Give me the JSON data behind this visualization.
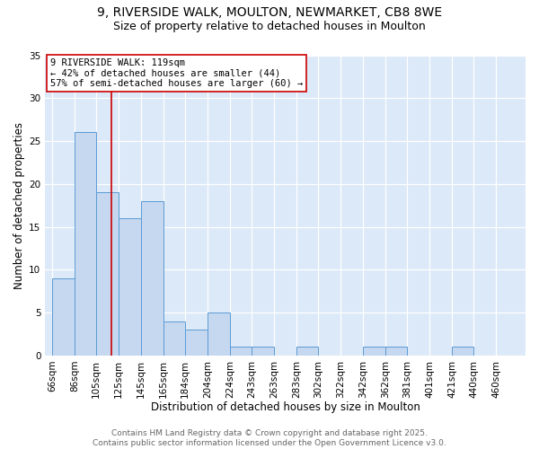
{
  "title_line1": "9, RIVERSIDE WALK, MOULTON, NEWMARKET, CB8 8WE",
  "title_line2": "Size of property relative to detached houses in Moulton",
  "xlabel": "Distribution of detached houses by size in Moulton",
  "ylabel": "Number of detached properties",
  "bins": [
    66,
    86,
    105,
    125,
    145,
    165,
    184,
    204,
    224,
    243,
    263,
    283,
    302,
    322,
    342,
    362,
    381,
    401,
    421,
    440,
    460
  ],
  "bin_labels": [
    "66sqm",
    "86sqm",
    "105sqm",
    "125sqm",
    "145sqm",
    "165sqm",
    "184sqm",
    "204sqm",
    "224sqm",
    "243sqm",
    "263sqm",
    "283sqm",
    "302sqm",
    "322sqm",
    "342sqm",
    "362sqm",
    "381sqm",
    "401sqm",
    "421sqm",
    "440sqm",
    "460sqm"
  ],
  "values": [
    9,
    26,
    19,
    16,
    18,
    4,
    3,
    5,
    1,
    1,
    0,
    1,
    0,
    0,
    1,
    1,
    0,
    0,
    1,
    0,
    0
  ],
  "bar_color": "#c5d8f0",
  "bar_edge_color": "#5b9bd5",
  "property_size": 119,
  "vline_color": "#cc0000",
  "annotation_text": "9 RIVERSIDE WALK: 119sqm\n← 42% of detached houses are smaller (44)\n57% of semi-detached houses are larger (60) →",
  "annotation_box_color": "white",
  "annotation_box_edge": "#cc0000",
  "ylim": [
    0,
    35
  ],
  "yticks": [
    0,
    5,
    10,
    15,
    20,
    25,
    30,
    35
  ],
  "background_color": "#dce9f8",
  "footer_text": "Contains HM Land Registry data © Crown copyright and database right 2025.\nContains public sector information licensed under the Open Government Licence v3.0.",
  "title_fontsize": 10,
  "subtitle_fontsize": 9,
  "axis_label_fontsize": 8.5,
  "tick_fontsize": 7.5,
  "annotation_fontsize": 7.5,
  "footer_fontsize": 6.5
}
